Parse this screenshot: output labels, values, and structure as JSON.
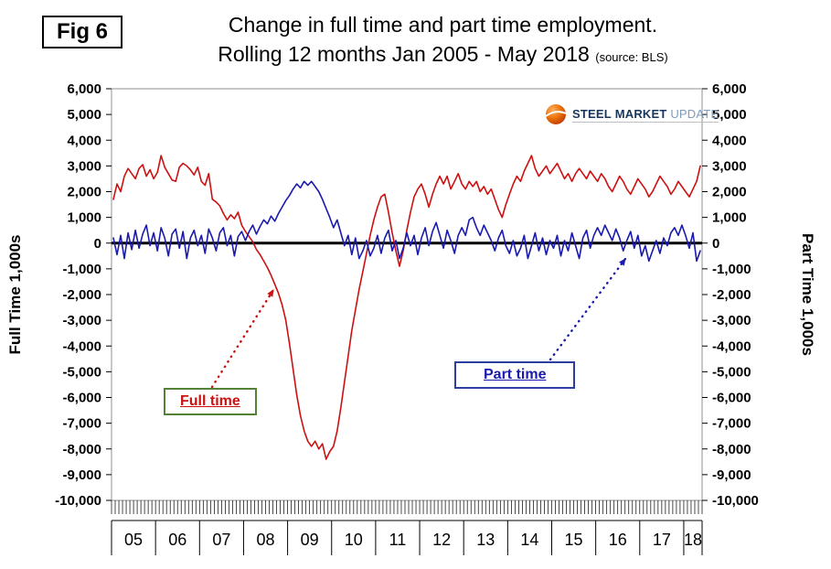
{
  "fig_label": "Fig 6",
  "title_line1": "Change in full time and part time employment.",
  "title_line2": "Rolling 12 months Jan 2005 - May 2018",
  "source": "(source: BLS)",
  "axes": {
    "left_title": "Full Time 1,000s",
    "right_title": "Part Time 1,000s"
  },
  "legend": {
    "full_time": "Full time",
    "part_time": "Part time"
  },
  "logo": {
    "steel": "STEEL",
    "market": "MARKET",
    "update": "UPDATE"
  },
  "colors": {
    "full_time_line": "#cc1111",
    "part_time_line": "#1a1aae",
    "zero_line": "#000000",
    "full_time_box_border": "#538135",
    "part_time_box_border": "#2e3e9e",
    "logo_orange": "#e8710a",
    "logo_navy": "#17365d",
    "logo_gray": "#7f9bbd",
    "plot_border": "#909090"
  },
  "chart_data": {
    "type": "line",
    "title": "Change in full time and part time employment.",
    "subtitle": "Rolling 12 months Jan 2005 - May 2018",
    "source": "(source: BLS)",
    "ylabel_left": "Full Time 1,000s",
    "ylabel_right": "Part Time 1,000s",
    "ylim": [
      -10000,
      6000
    ],
    "ytick_step": 1000,
    "grid": false,
    "legend_position": "callouts",
    "x_unit": "month",
    "year_labels": [
      "05",
      "06",
      "07",
      "08",
      "09",
      "10",
      "11",
      "12",
      "13",
      "14",
      "15",
      "16",
      "17",
      "18"
    ],
    "months_per_year": [
      12,
      12,
      12,
      12,
      12,
      12,
      12,
      12,
      12,
      12,
      12,
      12,
      12,
      5
    ],
    "series": [
      {
        "name": "Full time",
        "color": "#cc1111",
        "values": [
          1700,
          2300,
          2000,
          2600,
          2900,
          2700,
          2500,
          2900,
          3050,
          2600,
          2850,
          2500,
          2750,
          3400,
          2950,
          2700,
          2450,
          2400,
          2950,
          3100,
          3000,
          2850,
          2650,
          2950,
          2400,
          2250,
          2700,
          1700,
          1600,
          1450,
          1150,
          900,
          1100,
          950,
          1200,
          700,
          450,
          250,
          50,
          -250,
          -450,
          -700,
          -950,
          -1250,
          -1600,
          -1950,
          -2400,
          -3000,
          -3900,
          -4900,
          -5900,
          -6700,
          -7300,
          -7700,
          -7900,
          -7700,
          -8000,
          -7800,
          -8400,
          -8100,
          -7900,
          -7300,
          -6400,
          -5400,
          -4400,
          -3400,
          -2600,
          -1800,
          -1100,
          -400,
          300,
          900,
          1400,
          1800,
          1900,
          1200,
          400,
          -300,
          -900,
          -300,
          500,
          1200,
          1800,
          2100,
          2300,
          1900,
          1400,
          1900,
          2300,
          2600,
          2300,
          2600,
          2100,
          2400,
          2700,
          2300,
          2100,
          2400,
          2200,
          2400,
          2000,
          2200,
          1900,
          2100,
          1700,
          1300,
          1000,
          1500,
          1900,
          2300,
          2600,
          2400,
          2800,
          3100,
          3400,
          2900,
          2600,
          2800,
          3000,
          2700,
          2900,
          3100,
          2800,
          2500,
          2700,
          2400,
          2700,
          2900,
          2700,
          2500,
          2800,
          2600,
          2400,
          2700,
          2500,
          2200,
          2000,
          2300,
          2600,
          2400,
          2100,
          1900,
          2200,
          2500,
          2300,
          2100,
          1800,
          2000,
          2300,
          2600,
          2400,
          2200,
          1900,
          2100,
          2400,
          2200,
          2000,
          1800,
          2100,
          2400,
          3000
        ]
      },
      {
        "name": "Part time",
        "color": "#1a1aae",
        "values": [
          200,
          -450,
          300,
          -600,
          400,
          -250,
          500,
          -200,
          350,
          700,
          -100,
          400,
          -300,
          600,
          200,
          -500,
          350,
          550,
          -200,
          450,
          -600,
          200,
          500,
          -100,
          300,
          -400,
          550,
          200,
          -300,
          400,
          600,
          -100,
          300,
          -500,
          250,
          450,
          100,
          450,
          700,
          350,
          650,
          900,
          750,
          1050,
          850,
          1150,
          1400,
          1650,
          1850,
          2100,
          2300,
          2150,
          2400,
          2250,
          2400,
          2200,
          2000,
          1700,
          1350,
          1000,
          600,
          900,
          400,
          -100,
          300,
          -450,
          200,
          -600,
          -300,
          100,
          -500,
          -200,
          300,
          -400,
          200,
          500,
          -300,
          100,
          -600,
          -200,
          400,
          -100,
          300,
          -450,
          200,
          600,
          -100,
          450,
          800,
          300,
          -200,
          500,
          100,
          -400,
          300,
          600,
          300,
          900,
          1000,
          600,
          300,
          700,
          400,
          100,
          -300,
          200,
          500,
          -100,
          -400,
          100,
          -500,
          -200,
          300,
          -600,
          -100,
          400,
          -300,
          200,
          -450,
          100,
          -200,
          300,
          -500,
          100,
          -300,
          400,
          -100,
          -600,
          200,
          500,
          -200,
          300,
          600,
          300,
          700,
          400,
          100,
          550,
          200,
          -300,
          100,
          450,
          -200,
          300,
          -500,
          -100,
          -700,
          -300,
          100,
          -400,
          200,
          -100,
          400,
          600,
          300,
          700,
          300,
          -200,
          400,
          -700,
          -300
        ]
      }
    ]
  }
}
